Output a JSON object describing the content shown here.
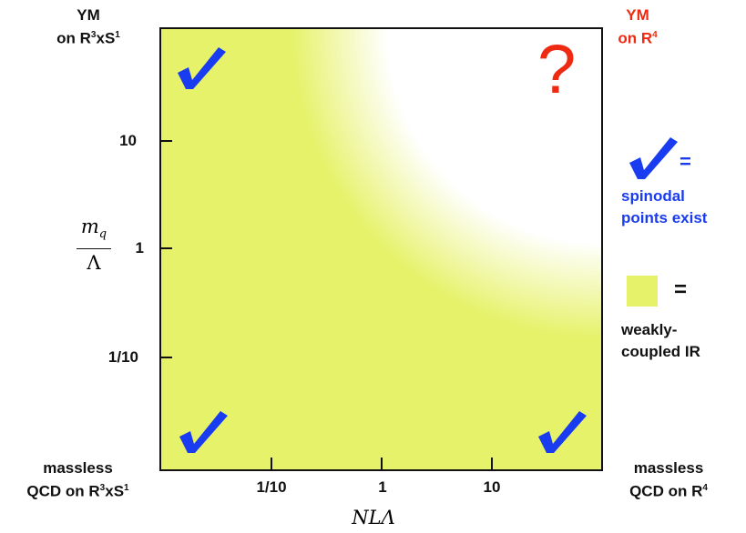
{
  "corners": {
    "top_left": {
      "line1": "YM",
      "line2_prefix": "on R",
      "line2_sup": "3",
      "line2_mid": "xS",
      "line2_sup2": "1"
    },
    "top_right": {
      "line1": "YM",
      "line2_prefix": "on R",
      "line2_sup": "4"
    },
    "bottom_left": {
      "line1": "massless",
      "line2_prefix": "QCD on R",
      "line2_sup": "3",
      "line2_mid": "xS",
      "line2_sup2": "1"
    },
    "bottom_right": {
      "line1": "massless",
      "line2_prefix": "QCD on R",
      "line2_sup": "4"
    }
  },
  "axes": {
    "y_label_num": "m",
    "y_label_sub": "q",
    "y_label_den": "Λ",
    "y_ticks": [
      "10",
      "1",
      "1/10"
    ],
    "x_label": "NLΛ",
    "x_ticks": [
      "1/10",
      "1",
      "10"
    ]
  },
  "plot": {
    "question_mark": "?",
    "colors": {
      "weak_coupling": "#e6f26a",
      "check": "#1a3cf0",
      "question": "#ee2a12"
    }
  },
  "legend": {
    "check_equals": "=",
    "check_text_line1": "spinodal",
    "check_text_line2": "points exist",
    "swatch_equals": "=",
    "swatch_text_line1": "weakly-",
    "swatch_text_line2": "coupled IR"
  }
}
